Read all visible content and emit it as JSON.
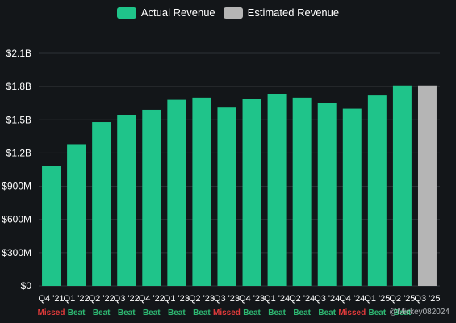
{
  "legend": {
    "actual_label": "Actual Revenue",
    "estimated_label": "Estimated Revenue"
  },
  "colors": {
    "actual": "#1fc48a",
    "estimated": "#b5b5b5",
    "background": "#131619",
    "beat": "#2eb872",
    "missed": "#e23b3b",
    "grid": "#2e3236"
  },
  "chart_data": {
    "type": "bar",
    "categories": [
      "Q4 '21",
      "Q1 '22",
      "Q2 '22",
      "Q3 '22",
      "Q4 '22",
      "Q1 '23",
      "Q2 '23",
      "Q3 '23",
      "Q4 '23",
      "Q1 '24",
      "Q2 '24",
      "Q3 '24",
      "Q4 '24",
      "Q1 '25",
      "Q2 '25",
      "Q3 '25"
    ],
    "series": [
      {
        "name": "Actual Revenue",
        "values": [
          1.08,
          1.28,
          1.48,
          1.54,
          1.59,
          1.68,
          1.7,
          1.61,
          1.69,
          1.73,
          1.7,
          1.65,
          1.6,
          1.72,
          1.81,
          null
        ]
      },
      {
        "name": "Estimated Revenue",
        "values": [
          null,
          null,
          null,
          null,
          null,
          null,
          null,
          null,
          null,
          null,
          null,
          null,
          null,
          null,
          null,
          1.81
        ]
      }
    ],
    "results": [
      "Missed",
      "Beat",
      "Beat",
      "Beat",
      "Beat",
      "Beat",
      "Beat",
      "Missed",
      "Beat",
      "Beat",
      "Beat",
      "Beat",
      "Missed",
      "Beat",
      "Beat",
      ""
    ],
    "y_ticks": [
      {
        "value": 0,
        "label": "$0"
      },
      {
        "value": 0.3,
        "label": "$300M"
      },
      {
        "value": 0.6,
        "label": "$600M"
      },
      {
        "value": 0.9,
        "label": "$900M"
      },
      {
        "value": 1.2,
        "label": "$1.2B"
      },
      {
        "value": 1.5,
        "label": "$1.5B"
      },
      {
        "value": 1.8,
        "label": "$1.8B"
      },
      {
        "value": 2.1,
        "label": "$2.1B"
      }
    ],
    "ylim": [
      0,
      2.1
    ],
    "unit": "USD billions",
    "grid": true,
    "legend_position": "top-center"
  },
  "watermark": "@Mickey082024"
}
